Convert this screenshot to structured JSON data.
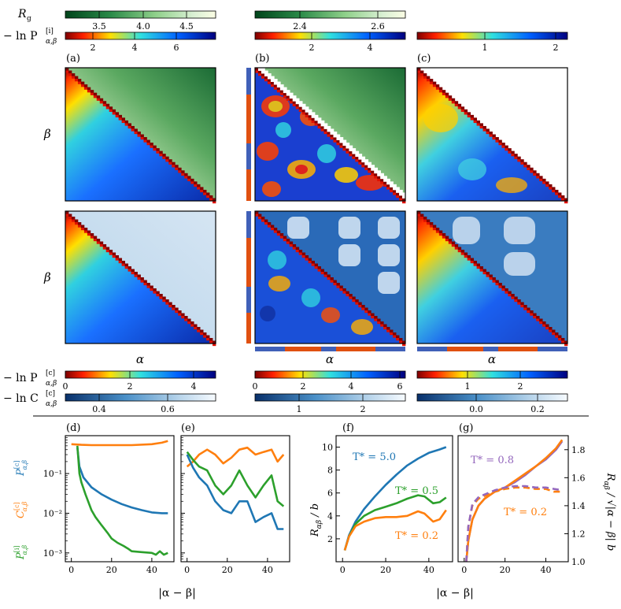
{
  "colorbars_top": {
    "rg_label": "R",
    "rg_sub": "g",
    "pi_label": "− ln P",
    "pi_sup": "[i]",
    "pi_sub": "α,β",
    "a_rg_ticks": [
      "3.5",
      "4.0",
      "4.5"
    ],
    "b_rg_ticks": [
      "2.4",
      "2.6"
    ],
    "a_pi_ticks": [
      "2",
      "4",
      "6"
    ],
    "b_pi_ticks": [
      "2",
      "4"
    ],
    "c_pi_ticks": [
      "1",
      "2"
    ]
  },
  "colorbars_bottom": {
    "pc_label": "− ln P",
    "pc_sup": "[c]",
    "pc_sub": "α,β",
    "cc_label": "− ln C",
    "cc_sup": "[c]",
    "cc_sub": "α,β",
    "a_pc_ticks": [
      "0",
      "2",
      "4"
    ],
    "b_pc_ticks": [
      "0",
      "2",
      "4",
      "6"
    ],
    "c_pc_ticks": [
      "1",
      "2"
    ],
    "a_cc_ticks": [
      "0.4",
      "0.6"
    ],
    "b_cc_ticks": [
      "1",
      "2"
    ],
    "c_cc_ticks": [
      "0.0",
      "0.2"
    ]
  },
  "panel_labels": {
    "a": "(a)",
    "b": "(b)",
    "c": "(c)",
    "d": "(d)",
    "e": "(e)",
    "f": "(f)",
    "g": "(g)"
  },
  "axis_labels": {
    "alpha": "α",
    "beta": "β",
    "abs_diff": "|α − β|"
  },
  "chart_data": [
    {
      "type": "line",
      "id": "d",
      "xlabel": "|α − β|",
      "ylabel": "P[i]α,β  C[c]α,β  P[c]α,β",
      "yscale": "log",
      "xlim": [
        -3,
        51
      ],
      "ylim": [
        0.0006,
        0.9
      ],
      "x_ticks": [
        "0",
        "20",
        "40"
      ],
      "y_ticks": [
        "10⁻³",
        "10⁻²",
        "10⁻¹"
      ],
      "series": [
        {
          "name": "C[c]",
          "color": "#ff7f0e",
          "x": [
            0,
            5,
            10,
            20,
            30,
            40,
            45,
            48
          ],
          "y": [
            0.55,
            0.53,
            0.52,
            0.52,
            0.52,
            0.55,
            0.6,
            0.66
          ]
        },
        {
          "name": "P[c]",
          "color": "#1f77b4",
          "x": [
            3,
            4,
            6,
            10,
            15,
            20,
            25,
            30,
            35,
            40,
            45,
            48
          ],
          "y": [
            0.45,
            0.15,
            0.08,
            0.045,
            0.03,
            0.022,
            0.017,
            0.014,
            0.012,
            0.0105,
            0.01,
            0.01
          ]
        },
        {
          "name": "P[i]",
          "color": "#2ca02c",
          "x": [
            3,
            4,
            5,
            7,
            10,
            12,
            15,
            18,
            20,
            23,
            26,
            28,
            30,
            35,
            40,
            42,
            44,
            46,
            48
          ],
          "y": [
            0.5,
            0.1,
            0.06,
            0.03,
            0.012,
            0.008,
            0.005,
            0.0032,
            0.0023,
            0.0018,
            0.0015,
            0.0013,
            0.0011,
            0.00105,
            0.001,
            0.0009,
            0.0011,
            0.0009,
            0.001
          ]
        }
      ]
    },
    {
      "type": "line",
      "id": "e",
      "xlabel": "|α − β|",
      "yscale": "log",
      "xlim": [
        -3,
        51
      ],
      "ylim": [
        0.0006,
        0.9
      ],
      "x_ticks": [
        "0",
        "20",
        "40"
      ],
      "series": [
        {
          "name": "C[c]",
          "color": "#ff7f0e",
          "x": [
            0,
            3,
            6,
            10,
            14,
            18,
            22,
            26,
            30,
            34,
            38,
            42,
            45,
            48
          ],
          "y": [
            0.15,
            0.2,
            0.3,
            0.4,
            0.3,
            0.18,
            0.25,
            0.4,
            0.45,
            0.3,
            0.35,
            0.4,
            0.2,
            0.3
          ]
        },
        {
          "name": "P[i]",
          "color": "#2ca02c",
          "x": [
            0,
            3,
            6,
            10,
            14,
            18,
            22,
            26,
            30,
            34,
            38,
            42,
            45,
            48
          ],
          "y": [
            0.35,
            0.22,
            0.15,
            0.12,
            0.05,
            0.03,
            0.05,
            0.12,
            0.05,
            0.025,
            0.05,
            0.09,
            0.02,
            0.015
          ]
        },
        {
          "name": "P[c]",
          "color": "#1f77b4",
          "x": [
            0,
            3,
            6,
            10,
            14,
            18,
            22,
            26,
            30,
            34,
            38,
            42,
            45,
            48
          ],
          "y": [
            0.3,
            0.14,
            0.08,
            0.05,
            0.02,
            0.012,
            0.01,
            0.02,
            0.02,
            0.006,
            0.008,
            0.01,
            0.004,
            0.004
          ]
        }
      ]
    },
    {
      "type": "line",
      "id": "f",
      "xlabel": "|α − β|",
      "ylabel": "R_αβ / b",
      "xlim": [
        -3,
        51
      ],
      "ylim": [
        0,
        11
      ],
      "x_ticks": [
        "0",
        "20",
        "40"
      ],
      "y_ticks": [
        "2",
        "4",
        "6",
        "8",
        "10"
      ],
      "series": [
        {
          "name": "T* = 5.0",
          "color": "#1f77b4",
          "x": [
            1,
            3,
            6,
            10,
            15,
            20,
            25,
            30,
            35,
            40,
            45,
            48
          ],
          "y": [
            1.0,
            2.3,
            3.5,
            4.6,
            5.7,
            6.7,
            7.6,
            8.4,
            9.0,
            9.5,
            9.8,
            10.0
          ]
        },
        {
          "name": "T* = 0.5",
          "color": "#2ca02c",
          "x": [
            1,
            3,
            6,
            10,
            15,
            20,
            25,
            30,
            35,
            38,
            42,
            45,
            48
          ],
          "y": [
            1.0,
            2.2,
            3.3,
            4.0,
            4.5,
            4.8,
            5.1,
            5.5,
            5.8,
            5.7,
            5.1,
            5.2,
            5.6
          ]
        },
        {
          "name": "T* = 0.2",
          "color": "#ff7f0e",
          "x": [
            1,
            3,
            6,
            10,
            15,
            20,
            25,
            30,
            35,
            38,
            42,
            45,
            48
          ],
          "y": [
            1.0,
            2.2,
            3.1,
            3.5,
            3.8,
            3.9,
            3.9,
            4.0,
            4.4,
            4.2,
            3.5,
            3.7,
            4.5
          ]
        }
      ],
      "annotations": [
        {
          "text": "T* = 5.0",
          "color": "#1f77b4"
        },
        {
          "text": "T* = 0.5",
          "color": "#2ca02c"
        },
        {
          "text": "T* = 0.2",
          "color": "#ff7f0e"
        }
      ]
    },
    {
      "type": "line",
      "id": "g",
      "xlabel": "",
      "ylabel": "R_αβ / √(|α − β|) b",
      "xlim": [
        -3,
        51
      ],
      "ylim": [
        1.0,
        1.9
      ],
      "x_ticks": [
        "0",
        "20",
        "40"
      ],
      "y_ticks": [
        "1.0",
        "1.2",
        "1.4",
        "1.6",
        "1.8"
      ],
      "series": [
        {
          "name": "T* = 0.8 solid",
          "color": "#9467bd",
          "style": "solid",
          "x": [
            1,
            2,
            4,
            7,
            10,
            15,
            20,
            25,
            30,
            35,
            40,
            45,
            48
          ],
          "y": [
            1.0,
            1.15,
            1.3,
            1.4,
            1.45,
            1.5,
            1.53,
            1.57,
            1.62,
            1.68,
            1.73,
            1.8,
            1.86
          ]
        },
        {
          "name": "T* = 0.2 solid",
          "color": "#ff7f0e",
          "style": "solid",
          "x": [
            1,
            2,
            4,
            7,
            10,
            15,
            20,
            25,
            30,
            35,
            40,
            45,
            48
          ],
          "y": [
            1.0,
            1.15,
            1.3,
            1.4,
            1.45,
            1.5,
            1.53,
            1.58,
            1.63,
            1.68,
            1.74,
            1.81,
            1.87
          ]
        },
        {
          "name": "T* = 0.2 dashed",
          "color": "#ff7f0e",
          "style": "dashed",
          "x": [
            1,
            2,
            4,
            7,
            10,
            15,
            20,
            25,
            30,
            35,
            40,
            44,
            48
          ],
          "y": [
            1.0,
            1.25,
            1.4,
            1.45,
            1.47,
            1.5,
            1.52,
            1.53,
            1.53,
            1.52,
            1.52,
            1.5,
            1.5
          ]
        },
        {
          "name": "T* = 0.8 dashed",
          "color": "#9467bd",
          "style": "dashed",
          "x": [
            1,
            2,
            4,
            7,
            10,
            15,
            20,
            25,
            30,
            35,
            40,
            44,
            48
          ],
          "y": [
            1.0,
            1.25,
            1.41,
            1.46,
            1.48,
            1.51,
            1.53,
            1.54,
            1.54,
            1.53,
            1.53,
            1.52,
            1.51
          ]
        }
      ],
      "annotations": [
        {
          "text": "T* = 0.8",
          "color": "#9467bd"
        },
        {
          "text": "T* = 0.2",
          "color": "#ff7f0e"
        }
      ]
    }
  ]
}
